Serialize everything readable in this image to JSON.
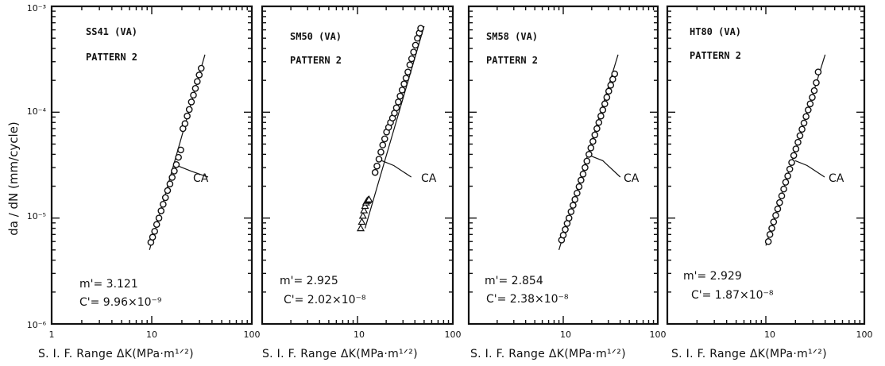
{
  "figure": {
    "ylabel": "da / dN (mm/cycle)",
    "xlabel": "S. I. F.  Range ΔK(MPa·m¹ᐟ²)",
    "y_tick_labels": [
      "10⁻³",
      "10⁻⁴",
      "10⁻⁵",
      "10⁻⁶"
    ],
    "x_tick_labels": [
      "1",
      "10",
      "100"
    ],
    "ca_label": "CA"
  },
  "chart_data": [
    {
      "type": "scatter",
      "title": "SS41 (VA)",
      "subtitle": "PATTERN 2",
      "xscale": "log",
      "yscale": "log",
      "xlim": [
        1,
        100
      ],
      "ylim": [
        1e-06,
        0.001
      ],
      "xlabel": "S. I. F.  Range ΔK(MPa·m¹ᐟ²)",
      "ylabel": "da / dN (mm/cycle)",
      "m_text": "m'= 3.121",
      "c_text": "C'= 9.96×10⁻⁹",
      "m": 3.121,
      "C": 9.96e-09,
      "fit_line": {
        "x": [
          9.5,
          34
        ],
        "y": [
          5e-06,
          0.00035
        ]
      },
      "points": {
        "marker": "circle",
        "x": [
          9.8,
          10.2,
          10.7,
          11.2,
          11.8,
          12.4,
          13.0,
          13.7,
          14.4,
          15.2,
          16.0,
          16.8,
          17.6,
          18.5,
          19.5,
          20.5,
          21.5,
          22.6,
          23.7,
          24.9,
          26.1,
          27.3,
          28.5,
          29.8,
          31.2
        ],
        "y": [
          5.9e-06,
          6.6e-06,
          7.5e-06,
          8.7e-06,
          1e-05,
          1.17e-05,
          1.35e-05,
          1.56e-05,
          1.82e-05,
          2.1e-05,
          2.42e-05,
          2.78e-05,
          3.2e-05,
          3.75e-05,
          4.4e-05,
          7e-05,
          7.8e-05,
          9.2e-05,
          0.000106,
          0.000125,
          0.000145,
          0.000168,
          0.000195,
          0.000225,
          0.00026
        ]
      },
      "ca_point": {
        "x": 17.6,
        "y": 3.2e-05
      }
    },
    {
      "type": "scatter",
      "title": "SM50 (VA)",
      "subtitle": "PATTERN 2",
      "xscale": "log",
      "yscale": "log",
      "xlim": [
        1,
        100
      ],
      "ylim": [
        1e-06,
        0.001
      ],
      "xlabel": "S. I. F.  Range ΔK(MPa·m¹ᐟ²)",
      "m_text": "m'= 2.925",
      "c_text": "C'= 2.02×10⁻⁸",
      "m": 2.925,
      "C": 2.02e-08,
      "fit_line": {
        "x": [
          12,
          50
        ],
        "y": [
          8e-06,
          0.00065
        ]
      },
      "points": {
        "marker": "circle",
        "x": [
          15.3,
          16.0,
          16.8,
          17.6,
          18.4,
          19.3,
          20.2,
          21.2,
          22.2,
          23.3,
          24.4,
          25.6,
          26.8,
          28.0,
          29.4,
          30.8,
          32.3,
          33.8,
          35.4,
          37.0,
          38.8,
          40.6,
          42.5,
          44.5,
          46.0
        ],
        "y": [
          2.7e-05,
          3.1e-05,
          3.6e-05,
          4.2e-05,
          4.9e-05,
          5.6e-05,
          6.5e-05,
          7.2e-05,
          8e-05,
          8.8e-05,
          9.8e-05,
          0.00011,
          0.000125,
          0.000142,
          0.000162,
          0.000185,
          0.00021,
          0.00024,
          0.00028,
          0.00032,
          0.00037,
          0.00043,
          0.0005,
          0.00056,
          0.00062
        ]
      },
      "points2": {
        "marker": "triangle",
        "x": [
          10.8,
          11.1,
          11.4,
          11.7,
          12.0,
          12.3,
          12.6,
          12.9,
          13.2
        ],
        "y": [
          8e-06,
          9.2e-06,
          1.05e-05,
          1.18e-05,
          1.3e-05,
          1.4e-05,
          1.45e-05,
          1.48e-05,
          1.5e-05
        ]
      },
      "ca_point": {
        "x": 17.0,
        "y": 3.6e-05
      }
    },
    {
      "type": "scatter",
      "title": "SM58 (VA)",
      "subtitle": "PATTERN 2",
      "xscale": "log",
      "yscale": "log",
      "xlim": [
        1,
        100
      ],
      "ylim": [
        1e-06,
        0.001
      ],
      "xlabel": "S. I. F.  Range ΔK(MPa·m¹ᐟ²)",
      "m_text": "m'= 2.854",
      "c_text": "C'= 2.38×10⁻⁸",
      "m": 2.854,
      "C": 2.38e-08,
      "fit_line": {
        "x": [
          9.0,
          38
        ],
        "y": [
          5e-06,
          0.00035
        ]
      },
      "points": {
        "marker": "circle",
        "x": [
          9.6,
          10.0,
          10.5,
          11.0,
          11.5,
          12.1,
          12.7,
          13.3,
          14.0,
          14.7,
          15.4,
          16.2,
          17.0,
          17.8,
          18.7,
          19.6,
          20.6,
          21.6,
          22.7,
          23.8,
          25.0,
          26.2,
          27.5,
          28.9,
          30.3,
          31.8,
          33.4,
          35.0
        ],
        "y": [
          6.2e-06,
          6.9e-06,
          7.8e-06,
          8.9e-06,
          1e-05,
          1.15e-05,
          1.32e-05,
          1.5e-05,
          1.72e-05,
          1.98e-05,
          2.28e-05,
          2.6e-05,
          3e-05,
          3.45e-05,
          4e-05,
          4.6e-05,
          5.3e-05,
          6.1e-05,
          7e-05,
          8e-05,
          9.2e-05,
          0.000105,
          0.00012,
          0.000138,
          0.000158,
          0.00018,
          0.000205,
          0.00023
        ]
      },
      "ca_point": {
        "x": 18.5,
        "y": 4e-05
      }
    },
    {
      "type": "scatter",
      "title": "HT80 (VA)",
      "subtitle": "PATTERN 2",
      "xscale": "log",
      "yscale": "log",
      "xlim": [
        1,
        100
      ],
      "ylim": [
        1e-06,
        0.001
      ],
      "xlabel": "S. I. F.  Range ΔK(MPa·m¹ᐟ²)",
      "m_text": "m'= 2.929",
      "c_text": "C'= 1.87×10⁻⁸",
      "m": 2.929,
      "C": 1.87e-08,
      "fit_line": {
        "x": [
          10.0,
          40
        ],
        "y": [
          5.5e-06,
          0.00035
        ]
      },
      "points": {
        "marker": "circle",
        "x": [
          10.6,
          11.0,
          11.5,
          12.0,
          12.6,
          13.2,
          13.8,
          14.5,
          15.2,
          15.9,
          16.7,
          17.5,
          18.3,
          19.2,
          20.2,
          21.2,
          22.2,
          23.3,
          24.4,
          25.6,
          26.9,
          28.2,
          29.6,
          31.0,
          32.5,
          34.0
        ],
        "y": [
          6e-06,
          7e-06,
          8e-06,
          9.2e-06,
          1.06e-05,
          1.22e-05,
          1.4e-05,
          1.62e-05,
          1.88e-05,
          2.18e-05,
          2.5e-05,
          2.9e-05,
          3.35e-05,
          3.9e-05,
          4.5e-05,
          5.2e-05,
          6e-05,
          6.9e-05,
          7.9e-05,
          9.1e-05,
          0.000105,
          0.00012,
          0.000138,
          0.00016,
          0.00019,
          0.00024
        ]
      },
      "ca_point": {
        "x": 18.8,
        "y": 3.6e-05
      }
    }
  ]
}
